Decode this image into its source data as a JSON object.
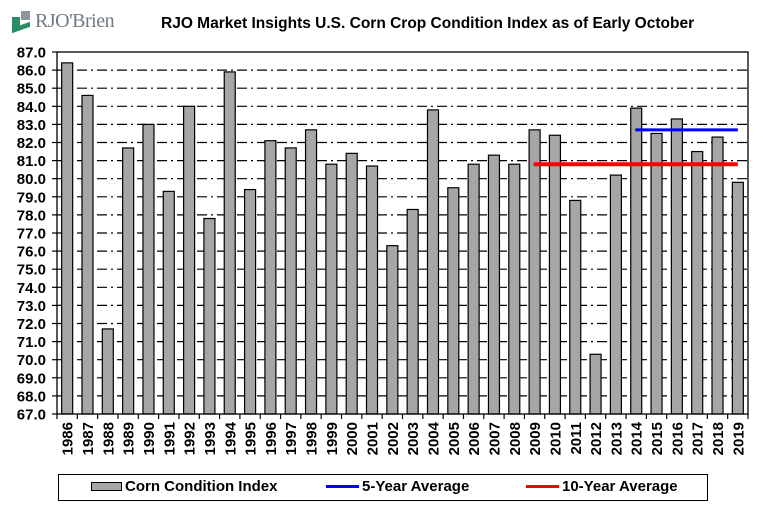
{
  "header": {
    "logo_text": "RJO'Brien",
    "title": "RJO Market Insights U.S. Corn Crop Condition Index as of Early October"
  },
  "colors": {
    "bar": "#a6a6a6",
    "five_year": "#0000ff",
    "ten_year": "#ff0000",
    "logo_green": "#2a8c63",
    "logo_gray": "#8a959c"
  },
  "chart_data": {
    "type": "bar",
    "title": "RJO Market Insights U.S. Corn Crop Condition Index as of Early October",
    "xlabel": "",
    "ylabel": "",
    "ylim": [
      67.0,
      87.0
    ],
    "ytick_step": 1.0,
    "yticks": [
      "67.0",
      "68.0",
      "69.0",
      "70.0",
      "71.0",
      "72.0",
      "73.0",
      "74.0",
      "75.0",
      "76.0",
      "77.0",
      "78.0",
      "79.0",
      "80.0",
      "81.0",
      "82.0",
      "83.0",
      "84.0",
      "85.0",
      "86.0",
      "87.0"
    ],
    "grid": true,
    "legend_position": "bottom",
    "categories": [
      "1986",
      "1987",
      "1988",
      "1989",
      "1990",
      "1991",
      "1992",
      "1993",
      "1994",
      "1995",
      "1996",
      "1997",
      "1998",
      "1999",
      "2000",
      "2001",
      "2002",
      "2003",
      "2004",
      "2005",
      "2006",
      "2007",
      "2008",
      "2009",
      "2010",
      "2011",
      "2012",
      "2013",
      "2014",
      "2015",
      "2016",
      "2017",
      "2018",
      "2019"
    ],
    "series": [
      {
        "name": "Corn Condition Index",
        "type": "bar",
        "values": [
          86.4,
          84.6,
          71.7,
          81.7,
          83.0,
          79.3,
          84.0,
          77.8,
          85.9,
          79.4,
          82.1,
          81.7,
          82.7,
          80.8,
          81.4,
          80.7,
          76.3,
          78.3,
          83.8,
          79.5,
          80.8,
          81.3,
          80.8,
          82.7,
          82.4,
          78.8,
          70.3,
          80.2,
          83.9,
          82.5,
          83.3,
          81.5,
          82.3,
          79.8
        ]
      },
      {
        "name": "5-Year Average",
        "type": "line",
        "value": 82.7,
        "from": "2014",
        "to": "2019"
      },
      {
        "name": "10-Year Average",
        "type": "line",
        "value": 80.8,
        "from": "2009",
        "to": "2019"
      }
    ]
  },
  "legend": {
    "items": [
      "Corn Condition Index",
      "5-Year Average",
      "10-Year Average"
    ]
  }
}
